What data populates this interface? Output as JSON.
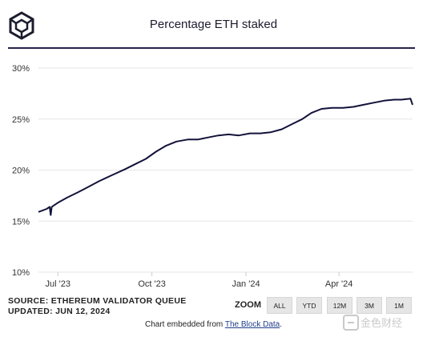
{
  "header": {
    "title": "Percentage ETH staked"
  },
  "logo": {
    "icon": "cube-logo-icon"
  },
  "footer": {
    "source": "SOURCE: ETHEREUM VALIDATOR QUEUE",
    "updated": "UPDATED: JUN 12, 2024",
    "embed_prefix": "Chart embedded from ",
    "embed_link": "The Block Data",
    "embed_suffix": "."
  },
  "zoom": {
    "label": "ZOOM",
    "buttons": [
      "ALL",
      "YTD",
      "12M",
      "3M",
      "1M"
    ]
  },
  "watermark": {
    "text": "金色财经"
  },
  "colors": {
    "line": "#13123a",
    "rule": "#2b1f4a",
    "grid": "#e6e6e6"
  },
  "chart_data": {
    "type": "line",
    "title": "Percentage ETH staked",
    "xlabel": "",
    "ylabel": "",
    "ylim": [
      10,
      30
    ],
    "yticks": [
      "10%",
      "15%",
      "20%",
      "25%",
      "30%"
    ],
    "xticks": [
      "Jul '23",
      "Oct '23",
      "Jan '24",
      "Apr '24"
    ],
    "xtick_dates": [
      "2023-07-01",
      "2023-10-01",
      "2024-01-01",
      "2024-04-01"
    ],
    "x_range": [
      "2023-06-12",
      "2024-06-12"
    ],
    "grid": true,
    "legend": "none",
    "series": [
      {
        "name": "",
        "points": [
          [
            "2023-06-12",
            15.9
          ],
          [
            "2023-06-20",
            16.2
          ],
          [
            "2023-06-23",
            16.4
          ],
          [
            "2023-06-24",
            15.6
          ],
          [
            "2023-06-25",
            16.4
          ],
          [
            "2023-07-01",
            16.8
          ],
          [
            "2023-07-10",
            17.3
          ],
          [
            "2023-07-20",
            17.8
          ],
          [
            "2023-07-28",
            18.2
          ],
          [
            "2023-08-10",
            18.9
          ],
          [
            "2023-08-25",
            19.6
          ],
          [
            "2023-09-05",
            20.1
          ],
          [
            "2023-09-15",
            20.6
          ],
          [
            "2023-09-25",
            21.1
          ],
          [
            "2023-10-05",
            21.8
          ],
          [
            "2023-10-15",
            22.4
          ],
          [
            "2023-10-25",
            22.8
          ],
          [
            "2023-11-05",
            23.0
          ],
          [
            "2023-11-15",
            23.0
          ],
          [
            "2023-11-25",
            23.2
          ],
          [
            "2023-12-05",
            23.4
          ],
          [
            "2023-12-15",
            23.5
          ],
          [
            "2023-12-25",
            23.4
          ],
          [
            "2024-01-05",
            23.6
          ],
          [
            "2024-01-15",
            23.6
          ],
          [
            "2024-01-25",
            23.7
          ],
          [
            "2024-02-05",
            24.0
          ],
          [
            "2024-02-15",
            24.5
          ],
          [
            "2024-02-25",
            25.0
          ],
          [
            "2024-03-05",
            25.6
          ],
          [
            "2024-03-15",
            26.0
          ],
          [
            "2024-03-25",
            26.1
          ],
          [
            "2024-04-05",
            26.1
          ],
          [
            "2024-04-15",
            26.2
          ],
          [
            "2024-04-25",
            26.4
          ],
          [
            "2024-05-05",
            26.6
          ],
          [
            "2024-05-15",
            26.8
          ],
          [
            "2024-05-25",
            26.9
          ],
          [
            "2024-06-01",
            26.9
          ],
          [
            "2024-06-10",
            27.0
          ],
          [
            "2024-06-12",
            26.4
          ]
        ]
      }
    ]
  }
}
